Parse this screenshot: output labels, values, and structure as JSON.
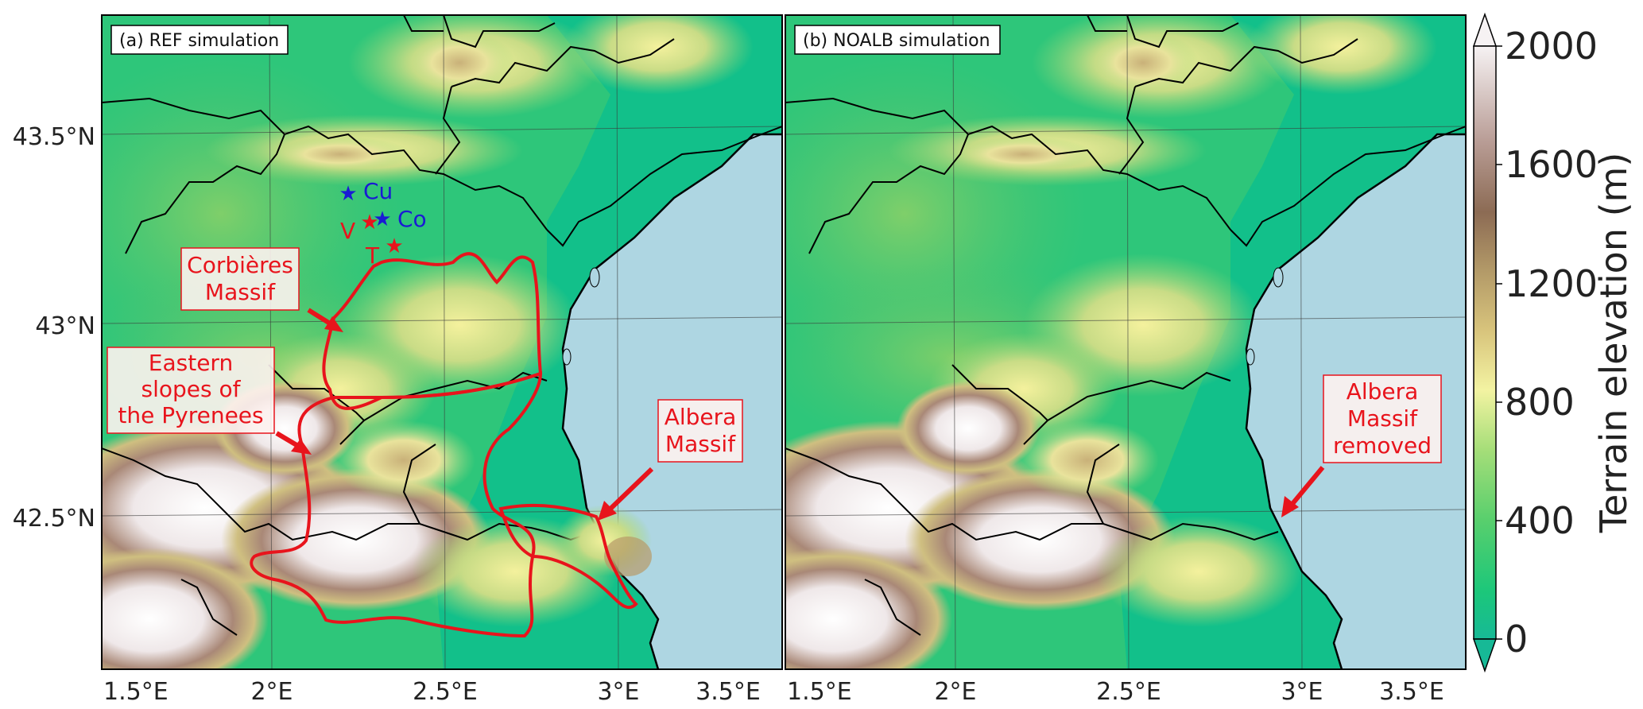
{
  "panels": [
    {
      "title": "(a) REF simulation"
    },
    {
      "title": "(b) NOALB simulation"
    }
  ],
  "axes": {
    "lat_ticks": [
      "43.5°N",
      "43°N",
      "42.5°N"
    ],
    "lon_ticks": [
      "1.5°E",
      "2°E",
      "2.5°E",
      "3°E",
      "3.5°E"
    ]
  },
  "colorbar": {
    "label": "Terrain elevation (m)",
    "ticks": [
      "2000",
      "1600",
      "1200",
      "800",
      "400",
      "0"
    ]
  },
  "annotations": {
    "corbieres": [
      "Corbières",
      "Massif"
    ],
    "pyrenees": [
      "Eastern",
      "slopes of",
      "the Pyrenees"
    ],
    "albera_ref": [
      "Albera",
      "Massif"
    ],
    "albera_noalb": [
      "Albera",
      "Massif",
      "removed"
    ]
  },
  "sites": {
    "cu": "Cu",
    "co": "Co",
    "v": "V",
    "t": "T"
  },
  "colors": {
    "sea": "#aed6e2",
    "lowland": "#12c488",
    "highland": "#f5f0f2",
    "annotation": "#e8141c",
    "site_blue": "#1a1ad4"
  }
}
